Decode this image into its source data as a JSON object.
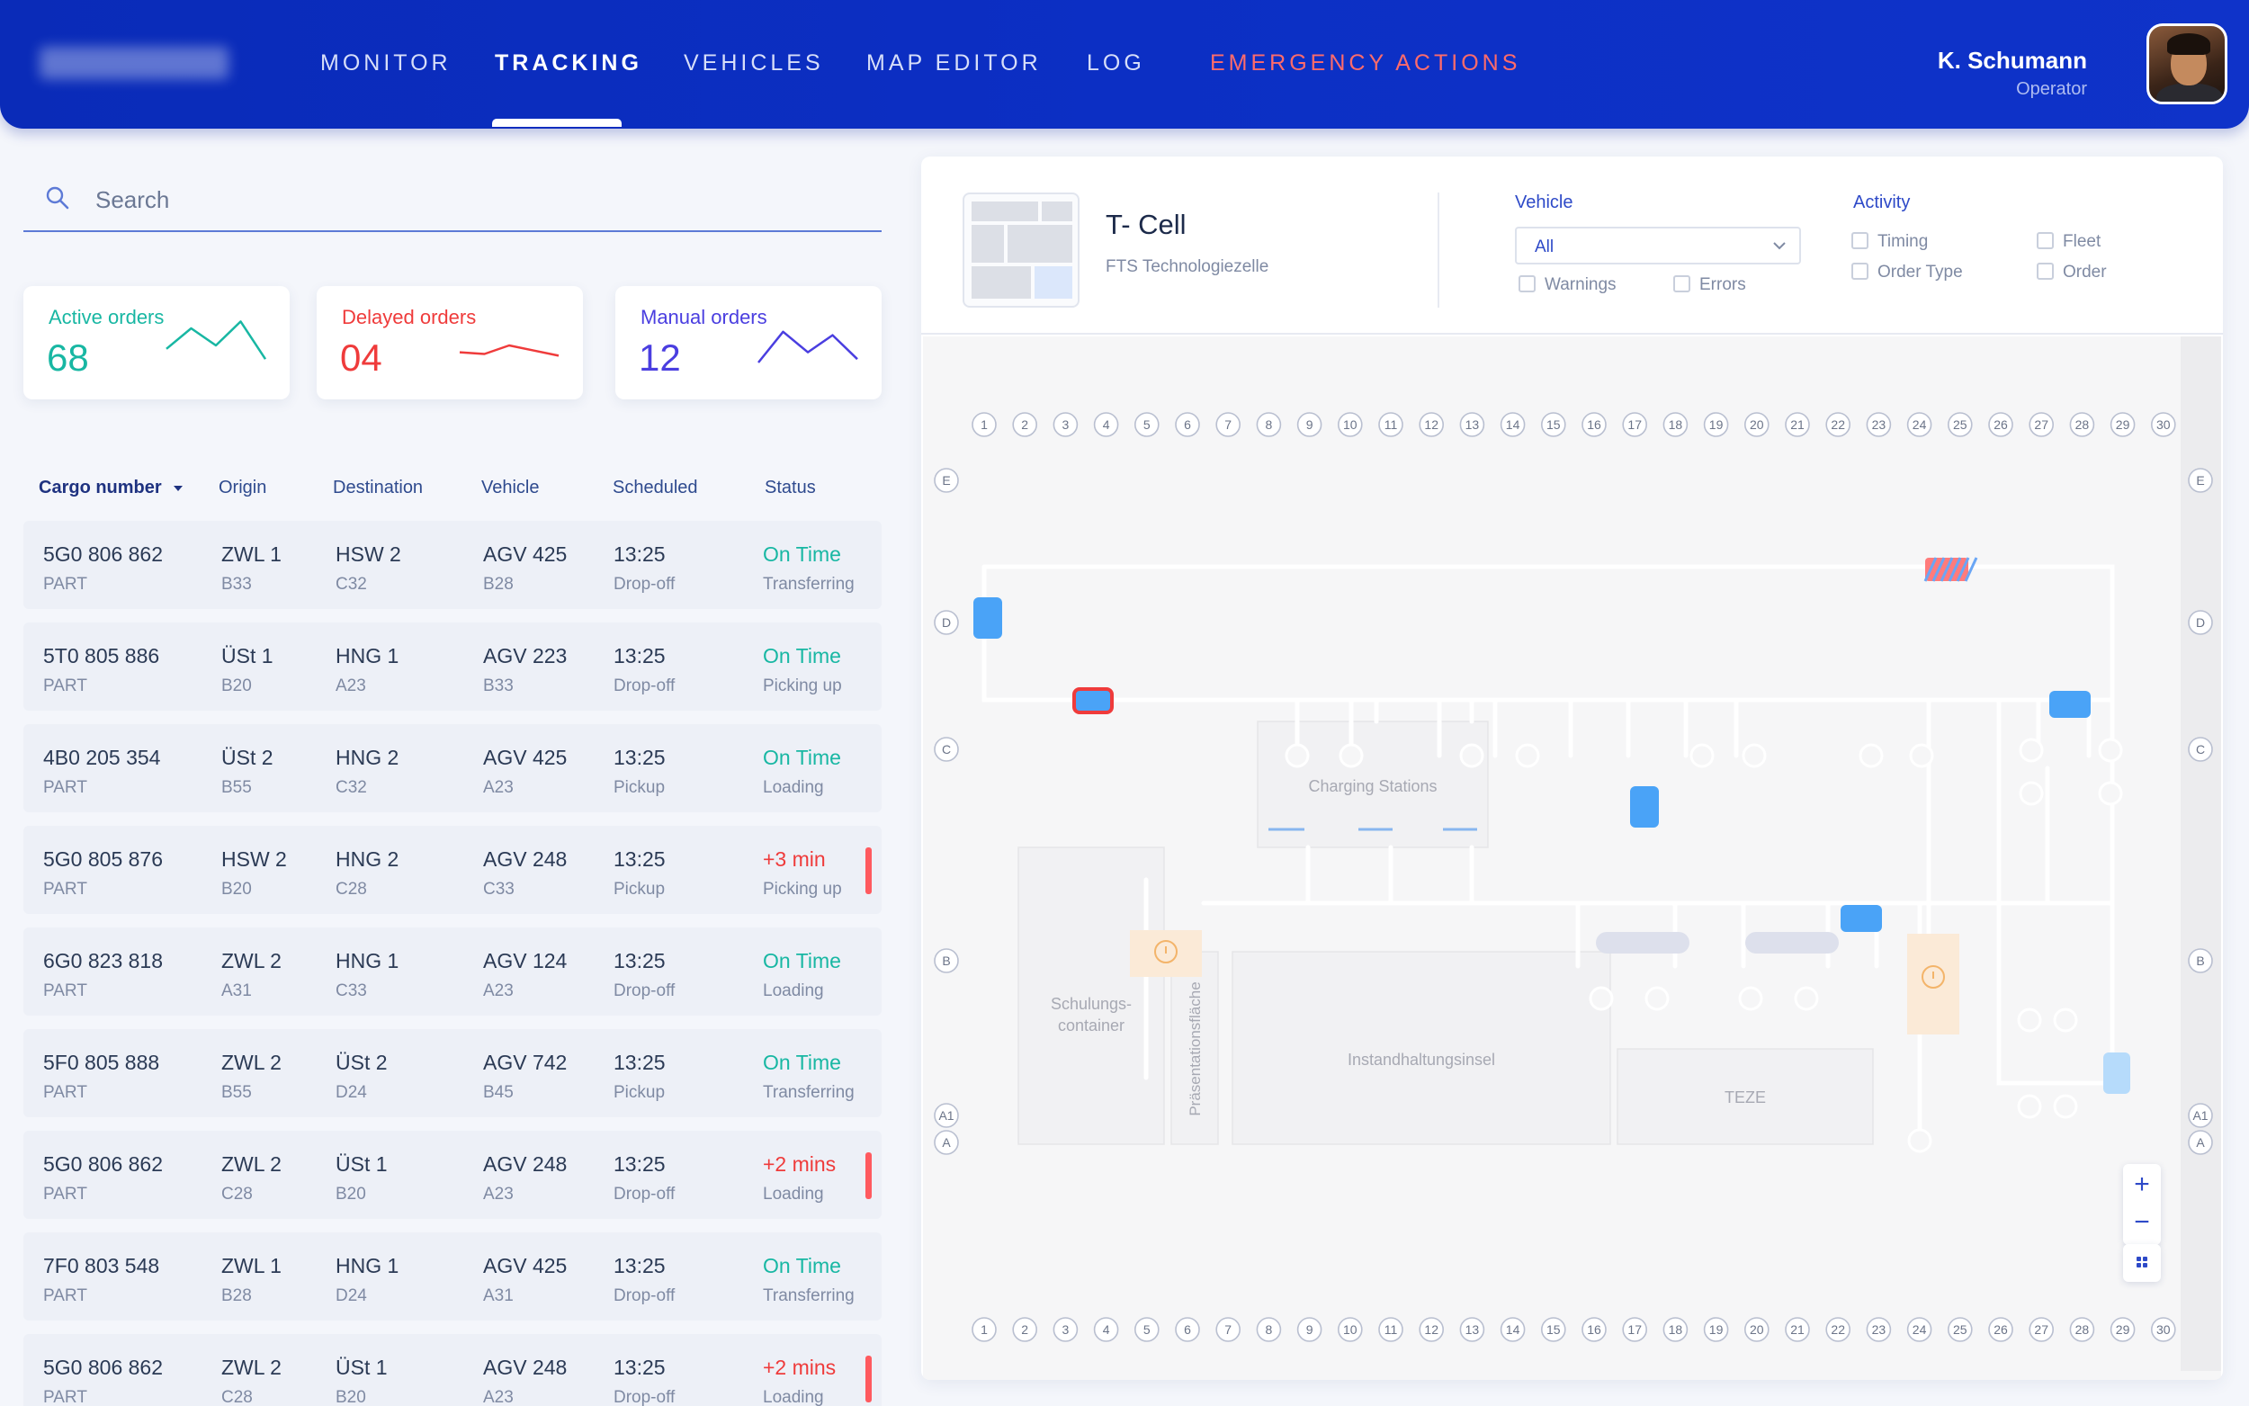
{
  "nav": {
    "items": [
      "MONITOR",
      "TRACKING",
      "VEHICLES",
      "MAP EDITOR",
      "LOG",
      "EMERGENCY ACTIONS"
    ],
    "active": "TRACKING",
    "emergency_color": "#ff6b6b"
  },
  "user": {
    "name": "K. Schumann",
    "role": "Operator"
  },
  "search": {
    "placeholder": "Search"
  },
  "stats": [
    {
      "label": "Active orders",
      "value": "68",
      "color": "#18b7a3",
      "trend": [
        18,
        30,
        20,
        34,
        12
      ]
    },
    {
      "label": "Delayed orders",
      "value": "04",
      "color": "#ef3b3b",
      "trend": [
        16,
        15,
        20,
        17,
        14
      ]
    },
    {
      "label": "Manual orders",
      "value": "12",
      "color": "#4a3ee0",
      "trend": [
        10,
        28,
        16,
        26,
        12
      ]
    }
  ],
  "table": {
    "headers": [
      "Cargo number",
      "Origin",
      "Destination",
      "Vehicle",
      "Scheduled",
      "Status"
    ],
    "rows": [
      {
        "cargo": "5G0 806 862",
        "type": "PART",
        "origin": "ZWL 1",
        "origin_sub": "B33",
        "dest": "HSW 2",
        "dest_sub": "C32",
        "vehicle": "AGV 425",
        "vehicle_sub": "B28",
        "time": "13:25",
        "mode": "Drop-off",
        "status": "On Time",
        "detail": "Transferring",
        "late": false
      },
      {
        "cargo": "5T0 805 886",
        "type": "PART",
        "origin": "ÜSt 1",
        "origin_sub": "B20",
        "dest": "HNG 1",
        "dest_sub": "A23",
        "vehicle": "AGV 223",
        "vehicle_sub": "B33",
        "time": "13:25",
        "mode": "Drop-off",
        "status": "On Time",
        "detail": "Picking up",
        "late": false
      },
      {
        "cargo": "4B0 205 354",
        "type": "PART",
        "origin": "ÜSt 2",
        "origin_sub": "B55",
        "dest": "HNG 2",
        "dest_sub": "C32",
        "vehicle": "AGV 425",
        "vehicle_sub": "A23",
        "time": "13:25",
        "mode": "Pickup",
        "status": "On Time",
        "detail": "Loading",
        "late": false
      },
      {
        "cargo": "5G0 805 876",
        "type": "PART",
        "origin": "HSW 2",
        "origin_sub": "B20",
        "dest": "HNG 2",
        "dest_sub": "C28",
        "vehicle": "AGV 248",
        "vehicle_sub": "C33",
        "time": "13:25",
        "mode": "Pickup",
        "status": "+3 min",
        "detail": "Picking up",
        "late": true
      },
      {
        "cargo": "6G0 823 818",
        "type": "PART",
        "origin": "ZWL 2",
        "origin_sub": "A31",
        "dest": "HNG 1",
        "dest_sub": "C33",
        "vehicle": "AGV 124",
        "vehicle_sub": "A23",
        "time": "13:25",
        "mode": "Drop-off",
        "status": "On Time",
        "detail": "Loading",
        "late": false
      },
      {
        "cargo": "5F0 805 888",
        "type": "PART",
        "origin": "ZWL 2",
        "origin_sub": "B55",
        "dest": "ÜSt 2",
        "dest_sub": "D24",
        "vehicle": "AGV 742",
        "vehicle_sub": "B45",
        "time": "13:25",
        "mode": "Pickup",
        "status": "On Time",
        "detail": "Transferring",
        "late": false
      },
      {
        "cargo": "5G0 806 862",
        "type": "PART",
        "origin": "ZWL 2",
        "origin_sub": "C28",
        "dest": "ÜSt 1",
        "dest_sub": "B20",
        "vehicle": "AGV 248",
        "vehicle_sub": "A23",
        "time": "13:25",
        "mode": "Drop-off",
        "status": "+2 mins",
        "detail": "Loading",
        "late": true
      },
      {
        "cargo": "7F0 803 548",
        "type": "PART",
        "origin": "ZWL 1",
        "origin_sub": "B28",
        "dest": "HNG 1",
        "dest_sub": "D24",
        "vehicle": "AGV 425",
        "vehicle_sub": "A31",
        "time": "13:25",
        "mode": "Drop-off",
        "status": "On Time",
        "detail": "Transferring",
        "late": false
      },
      {
        "cargo": "5G0 806 862",
        "type": "PART",
        "origin": "ZWL 2",
        "origin_sub": "C28",
        "dest": "ÜSt 1",
        "dest_sub": "B20",
        "vehicle": "AGV 248",
        "vehicle_sub": "A23",
        "time": "13:25",
        "mode": "Drop-off",
        "status": "+2 mins",
        "detail": "Loading",
        "late": true
      }
    ]
  },
  "cell": {
    "title": "T- Cell",
    "subtitle": "FTS Technologiezelle"
  },
  "filters": {
    "vehicle_label": "Vehicle",
    "vehicle_selected": "All",
    "vehicle_checks": [
      "Warnings",
      "Errors"
    ],
    "activity_label": "Activity",
    "activity_checks": [
      "Timing",
      "Fleet",
      "Order Type",
      "Order"
    ]
  },
  "map": {
    "columns": [
      "1",
      "2",
      "3",
      "4",
      "5",
      "6",
      "7",
      "8",
      "9",
      "10",
      "11",
      "12",
      "13",
      "14",
      "15",
      "16",
      "17",
      "18",
      "19",
      "20",
      "21",
      "22",
      "23",
      "24",
      "25",
      "26",
      "27",
      "28",
      "29",
      "30"
    ],
    "rows": [
      "E",
      "D",
      "C",
      "B",
      "A1",
      "A"
    ],
    "zones": [
      "Charging Stations",
      "Schulungs-",
      "container",
      "Präsentationsfläche",
      "Instandhaltungsinsel",
      "TEZE"
    ],
    "vehicle_color": "#4aa3f7",
    "alert_color": "#ef3b3b"
  },
  "controls": {
    "zoom_in": "+",
    "zoom_out": "−"
  }
}
